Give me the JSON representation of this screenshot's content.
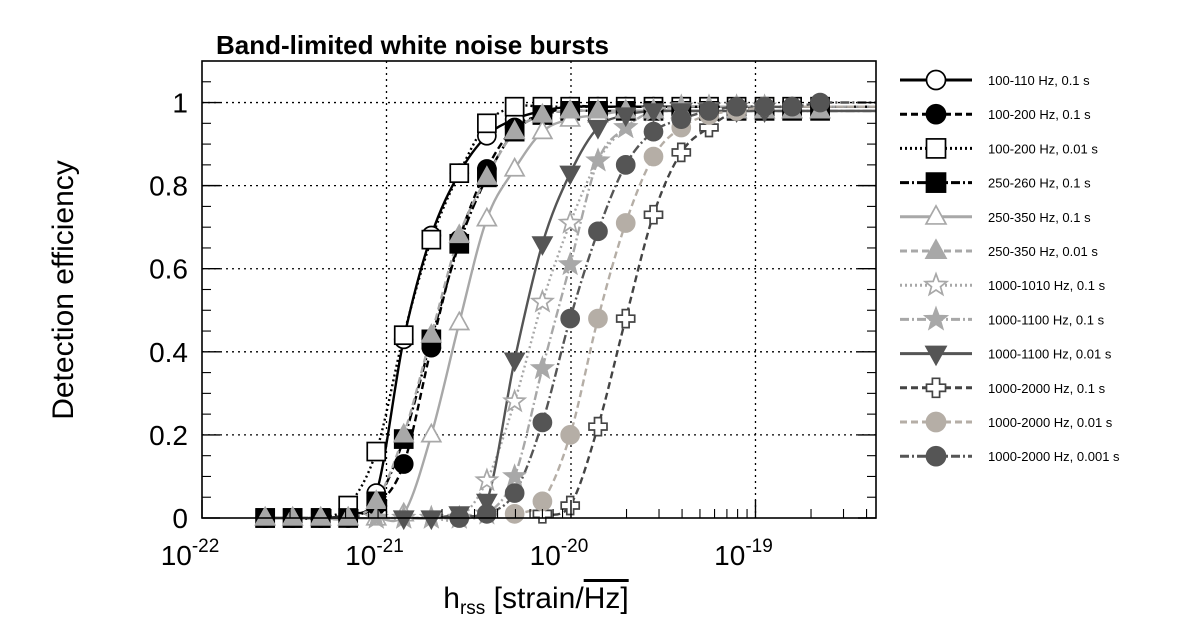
{
  "chart_data": {
    "type": "scatter",
    "title": "Band-limited white noise bursts",
    "ylabel": "Detection efficiency",
    "xlabel": {
      "main": "h",
      "sub": "rss",
      "unit_left": " [strain/",
      "unit_right": "Hz]"
    },
    "x_scale": "log",
    "xlim": [
      1e-22,
      4.5e-19
    ],
    "ylim": [
      0,
      1.1
    ],
    "grid": true,
    "legend_position": "right",
    "x_ticks": [
      {
        "value": 1e-22,
        "base": "10",
        "exp": "-22"
      },
      {
        "value": 1e-21,
        "base": "10",
        "exp": "-21"
      },
      {
        "value": 1e-20,
        "base": "10",
        "exp": "-20"
      },
      {
        "value": 1e-19,
        "base": "10",
        "exp": "-19"
      }
    ],
    "y_ticks": [
      {
        "value": 0,
        "label": "0"
      },
      {
        "value": 0.2,
        "label": "0.2"
      },
      {
        "value": 0.4,
        "label": "0.4"
      },
      {
        "value": 0.6,
        "label": "0.6"
      },
      {
        "value": 0.8,
        "label": "0.8"
      },
      {
        "value": 1,
        "label": "1"
      }
    ],
    "series": [
      {
        "name": "100-110 Hz, 0.1 s",
        "color": "#000000",
        "marker": "circle-open",
        "line": "solid",
        "x": [
          2.2e-22,
          3.1e-22,
          4.4e-22,
          6.2e-22,
          8.8e-22,
          1.24e-21,
          1.75e-21,
          2.48e-21,
          3.5e-21,
          4.95e-21,
          7e-21,
          9.9e-21,
          1.4e-20,
          1.98e-20,
          2.8e-20,
          3.96e-20,
          5.6e-20,
          7.9e-20,
          1.12e-19,
          1.58e-19,
          2.24e-19
        ],
        "y": [
          0,
          0,
          0,
          0.01,
          0.06,
          0.43,
          0.68,
          0.83,
          0.92,
          0.96,
          0.98,
          0.99,
          0.99,
          0.99,
          0.99,
          0.99,
          0.99,
          0.99,
          0.99,
          0.99,
          0.99
        ]
      },
      {
        "name": "100-200 Hz, 0.1 s",
        "color": "#000000",
        "marker": "circle-filled",
        "line": "dashed",
        "x": [
          2.2e-22,
          3.1e-22,
          4.4e-22,
          6.2e-22,
          8.8e-22,
          1.24e-21,
          1.75e-21,
          2.48e-21,
          3.5e-21,
          4.95e-21,
          7e-21,
          9.9e-21,
          1.4e-20,
          1.98e-20,
          2.8e-20,
          3.96e-20,
          5.6e-20,
          7.9e-20,
          1.12e-19,
          1.58e-19,
          2.24e-19
        ],
        "y": [
          0,
          0,
          0,
          0,
          0.03,
          0.13,
          0.41,
          0.67,
          0.84,
          0.94,
          0.97,
          0.99,
          0.99,
          0.99,
          0.99,
          0.99,
          0.99,
          0.99,
          0.99,
          0.99,
          0.99
        ]
      },
      {
        "name": "100-200 Hz, 0.01 s",
        "color": "#000000",
        "marker": "square-open",
        "line": "dotted",
        "x": [
          2.2e-22,
          3.1e-22,
          4.4e-22,
          6.2e-22,
          8.8e-22,
          1.24e-21,
          1.75e-21,
          2.48e-21,
          3.5e-21,
          4.95e-21,
          7e-21,
          9.9e-21,
          1.4e-20,
          1.98e-20,
          2.8e-20,
          3.96e-20,
          5.6e-20,
          7.9e-20,
          1.12e-19,
          1.58e-19,
          2.24e-19
        ],
        "y": [
          0,
          0,
          0,
          0.03,
          0.16,
          0.44,
          0.67,
          0.83,
          0.95,
          0.99,
          0.99,
          0.99,
          0.99,
          0.99,
          0.99,
          0.99,
          0.99,
          0.99,
          0.99,
          0.99,
          0.99
        ]
      },
      {
        "name": "250-260 Hz, 0.1 s",
        "color": "#000000",
        "marker": "square-filled",
        "line": "dashdot",
        "x": [
          2.2e-22,
          3.1e-22,
          4.4e-22,
          6.2e-22,
          8.8e-22,
          1.24e-21,
          1.75e-21,
          2.48e-21,
          3.5e-21,
          4.95e-21,
          7e-21,
          9.9e-21,
          1.4e-20,
          1.98e-20,
          2.8e-20,
          3.96e-20,
          5.6e-20,
          7.9e-20,
          1.12e-19,
          1.58e-19,
          2.24e-19
        ],
        "y": [
          0,
          0,
          0,
          0,
          0.04,
          0.19,
          0.43,
          0.66,
          0.82,
          0.93,
          0.97,
          0.98,
          0.98,
          0.98,
          0.98,
          0.98,
          0.98,
          0.98,
          0.98,
          0.98,
          0.98
        ]
      },
      {
        "name": "250-350 Hz, 0.1 s",
        "color": "#a8a8a8",
        "marker": "triangle-up-open",
        "line": "solid",
        "x": [
          2.2e-22,
          3.1e-22,
          4.4e-22,
          6.2e-22,
          8.8e-22,
          1.24e-21,
          1.75e-21,
          2.48e-21,
          3.5e-21,
          4.95e-21,
          7e-21,
          9.9e-21,
          1.4e-20,
          1.98e-20,
          2.8e-20,
          3.96e-20,
          5.6e-20,
          7.9e-20,
          1.12e-19,
          1.58e-19,
          2.24e-19
        ],
        "y": [
          0,
          0,
          0,
          0,
          0,
          0.01,
          0.2,
          0.47,
          0.72,
          0.84,
          0.93,
          0.96,
          0.97,
          0.98,
          0.98,
          0.98,
          0.98,
          0.98,
          0.98,
          0.98,
          0.98
        ]
      },
      {
        "name": "250-350 Hz, 0.01 s",
        "color": "#a8a8a8",
        "marker": "triangle-up-filled",
        "line": "dashed",
        "x": [
          2.2e-22,
          3.1e-22,
          4.4e-22,
          6.2e-22,
          8.8e-22,
          1.24e-21,
          1.75e-21,
          2.48e-21,
          3.5e-21,
          4.95e-21,
          7e-21,
          9.9e-21,
          1.4e-20,
          1.98e-20,
          2.8e-20,
          3.96e-20,
          5.6e-20,
          7.9e-20,
          1.12e-19,
          1.58e-19,
          2.24e-19
        ],
        "y": [
          0,
          0,
          0,
          0,
          0.04,
          0.2,
          0.44,
          0.68,
          0.82,
          0.93,
          0.97,
          0.98,
          0.98,
          0.98,
          0.98,
          0.98,
          0.98,
          0.98,
          0.98,
          0.98,
          0.98
        ]
      },
      {
        "name": "1000-1010 Hz, 0.1 s",
        "color": "#a8a8a8",
        "marker": "star-open",
        "line": "dotted",
        "x": [
          8.8e-22,
          1.24e-21,
          1.75e-21,
          2.48e-21,
          3.5e-21,
          4.95e-21,
          7e-21,
          9.9e-21,
          1.4e-20,
          1.98e-20,
          2.8e-20,
          3.96e-20,
          5.6e-20,
          7.9e-20,
          1.12e-19
        ],
        "y": [
          0,
          0,
          0,
          0,
          0.09,
          0.28,
          0.52,
          0.71,
          0.86,
          0.94,
          0.98,
          0.99,
          0.99,
          0.99,
          0.99
        ]
      },
      {
        "name": "1000-1100 Hz, 0.1 s",
        "color": "#a8a8a8",
        "marker": "star-filled",
        "line": "dashdot",
        "x": [
          8.8e-22,
          1.24e-21,
          1.75e-21,
          2.48e-21,
          3.5e-21,
          4.95e-21,
          7e-21,
          9.9e-21,
          1.4e-20,
          1.98e-20,
          2.8e-20,
          3.96e-20,
          5.6e-20,
          7.9e-20,
          1.12e-19
        ],
        "y": [
          0,
          0,
          0,
          0,
          0.01,
          0.1,
          0.36,
          0.61,
          0.86,
          0.94,
          0.98,
          0.99,
          0.99,
          0.99,
          0.99
        ]
      },
      {
        "name": "1000-1100 Hz, 0.01 s",
        "color": "#555555",
        "marker": "triangle-down-filled",
        "line": "solid",
        "x": [
          1.24e-21,
          1.75e-21,
          2.48e-21,
          3.5e-21,
          4.95e-21,
          7e-21,
          9.9e-21,
          1.4e-20,
          1.98e-20,
          2.8e-20,
          3.96e-20,
          5.6e-20,
          7.9e-20,
          1.12e-19
        ],
        "y": [
          0,
          0,
          0.01,
          0.04,
          0.38,
          0.66,
          0.83,
          0.94,
          0.97,
          0.98,
          0.98,
          0.98,
          0.98,
          0.98
        ]
      },
      {
        "name": "1000-2000 Hz, 0.1 s",
        "color": "#444444",
        "marker": "cross-open",
        "line": "dashed",
        "x": [
          7e-21,
          9.9e-21,
          1.4e-20,
          1.98e-20,
          2.8e-20,
          3.96e-20,
          5.6e-20,
          7.9e-20,
          1.12e-19
        ],
        "y": [
          0.01,
          0.03,
          0.22,
          0.48,
          0.73,
          0.88,
          0.94,
          0.98,
          0.99
        ]
      },
      {
        "name": "1000-2000 Hz, 0.01 s",
        "color": "#b5aea6",
        "marker": "circle-filled",
        "line": "dashed",
        "x": [
          4.95e-21,
          7e-21,
          9.9e-21,
          1.4e-20,
          1.98e-20,
          2.8e-20,
          3.96e-20,
          5.6e-20,
          7.9e-20,
          1.12e-19
        ],
        "y": [
          0.01,
          0.04,
          0.2,
          0.48,
          0.71,
          0.87,
          0.94,
          0.97,
          0.98,
          0.99
        ]
      },
      {
        "name": "1000-2000 Hz, 0.001 s",
        "color": "#555555",
        "marker": "circle-filled",
        "line": "dashdot",
        "x": [
          2.48e-21,
          3.5e-21,
          4.95e-21,
          7e-21,
          9.9e-21,
          1.4e-20,
          1.98e-20,
          2.8e-20,
          3.96e-20,
          5.6e-20,
          7.9e-20,
          1.12e-19,
          1.58e-19,
          2.24e-19
        ],
        "y": [
          0,
          0.01,
          0.06,
          0.23,
          0.48,
          0.69,
          0.85,
          0.93,
          0.96,
          0.98,
          0.99,
          0.99,
          0.99,
          1.0
        ]
      }
    ]
  }
}
